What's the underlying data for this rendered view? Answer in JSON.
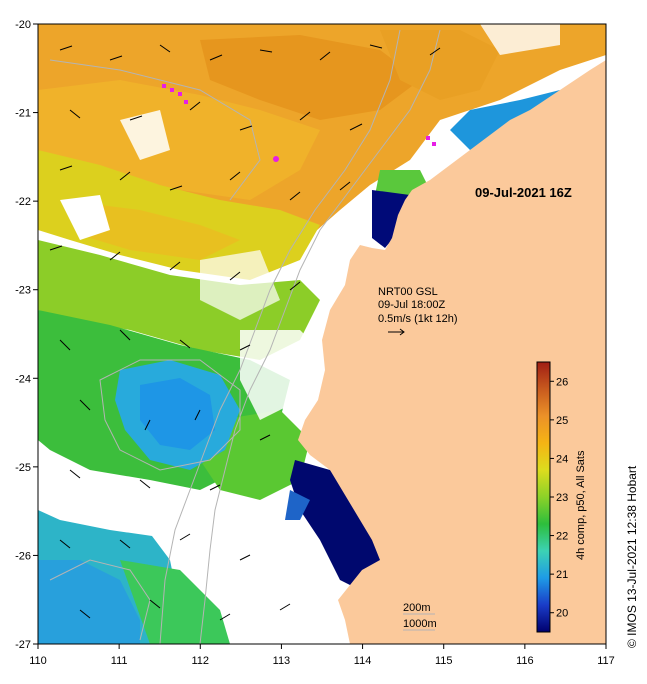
{
  "map": {
    "date_stamp": "09-Jul-2021 16Z",
    "wind_info": {
      "line1": "NRT00 GSL",
      "line2": "09-Jul 18:00Z",
      "line3": "0.5m/s (1kt 12h)"
    },
    "scale": {
      "contour_200": "200m",
      "contour_1000": "1000m"
    },
    "credit": "© IMOS 13-Jul-2021 12:38 Hobart",
    "lon_ticks": [
      "110",
      "111",
      "112",
      "113",
      "114",
      "115",
      "116",
      "117"
    ],
    "lat_ticks": [
      "-20",
      "-21",
      "-22",
      "-23",
      "-24",
      "-25",
      "-26",
      "-27"
    ],
    "extent": {
      "lon": [
        110,
        117
      ],
      "lat": [
        -27,
        -20
      ]
    }
  },
  "colorbar": {
    "label": "4h comp, p50, All Sats",
    "ticks": [
      "20",
      "21",
      "22",
      "23",
      "24",
      "25",
      "26"
    ],
    "range": [
      19.5,
      26.5
    ],
    "colors": [
      "#00006e",
      "#1a3cc8",
      "#1e9be6",
      "#3cd2b4",
      "#2dbe3c",
      "#8cd228",
      "#dcdc1e",
      "#f5b414",
      "#eb9128",
      "#c85a1e",
      "#a01e14"
    ]
  },
  "colors": {
    "land": "#fbc99b",
    "no_data": "#ffffff",
    "frame": "#000000",
    "contour": "#b4b4b4",
    "highlight": "#e61ee6"
  }
}
